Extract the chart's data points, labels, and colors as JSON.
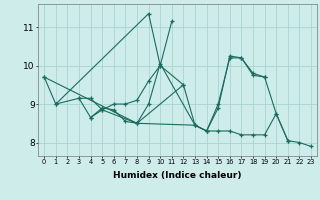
{
  "xlabel": "Humidex (Indice chaleur)",
  "bg_color": "#ceecea",
  "grid_color": "#aad4d0",
  "line_color": "#1a6b60",
  "xlim": [
    -0.5,
    23.5
  ],
  "ylim": [
    7.65,
    11.6
  ],
  "yticks": [
    8,
    9,
    10,
    11
  ],
  "xticks": [
    0,
    1,
    2,
    3,
    4,
    5,
    6,
    7,
    8,
    9,
    10,
    11,
    12,
    13,
    14,
    15,
    16,
    17,
    18,
    19,
    20,
    21,
    22,
    23
  ],
  "series": [
    {
      "x": [
        0,
        1,
        9,
        10,
        11
      ],
      "y": [
        9.7,
        9.0,
        11.35,
        10.0,
        11.15
      ]
    },
    {
      "x": [
        1,
        3,
        4,
        5,
        6,
        7,
        8,
        9,
        10,
        12
      ],
      "y": [
        9.0,
        9.15,
        9.15,
        8.85,
        9.0,
        9.0,
        9.1,
        9.6,
        10.0,
        9.5
      ]
    },
    {
      "x": [
        3,
        4,
        5,
        6,
        7,
        8,
        9,
        10,
        13,
        14,
        15,
        16,
        17,
        18,
        19
      ],
      "y": [
        9.15,
        8.65,
        8.9,
        8.85,
        8.55,
        8.5,
        9.0,
        10.05,
        8.45,
        8.3,
        9.0,
        10.2,
        10.2,
        9.75,
        9.7
      ]
    },
    {
      "x": [
        4,
        5,
        8,
        12,
        13,
        14,
        15,
        16,
        17,
        18,
        19,
        20,
        21
      ],
      "y": [
        8.65,
        8.85,
        8.5,
        9.5,
        8.45,
        8.3,
        8.9,
        10.25,
        10.2,
        9.8,
        9.7,
        8.75,
        8.05
      ]
    },
    {
      "x": [
        0,
        8,
        13,
        14,
        15,
        16,
        17,
        18,
        19,
        20,
        21,
        22,
        23
      ],
      "y": [
        9.7,
        8.5,
        8.45,
        8.3,
        8.3,
        8.3,
        8.2,
        8.2,
        8.2,
        8.75,
        8.05,
        8.0,
        7.9
      ]
    }
  ]
}
